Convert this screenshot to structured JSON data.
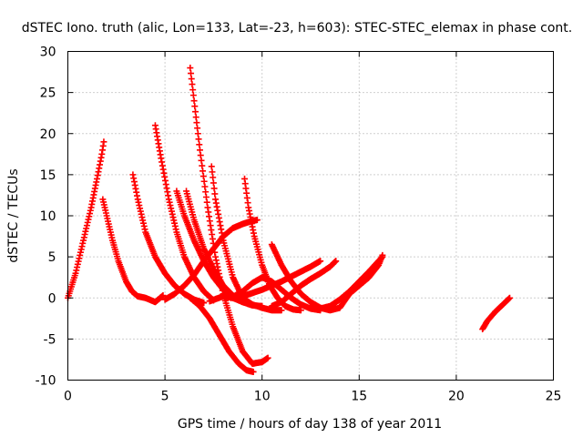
{
  "chart_data": {
    "type": "scatter",
    "title": "dSTEC Iono. truth (alic, Lon=133, Lat=-23, h=603): STEC-STEC_elemax in phase cont.",
    "xlabel": "GPS time / hours of day 138 of year 2011",
    "ylabel": "dSTEC  / TECUs",
    "xlim": [
      0,
      25
    ],
    "ylim": [
      -10,
      30
    ],
    "xticks": [
      0,
      5,
      10,
      15,
      20,
      25
    ],
    "yticks": [
      -10,
      -5,
      0,
      5,
      10,
      15,
      20,
      25,
      30
    ],
    "grid": true,
    "legend": "none",
    "marker": "plus",
    "color": "#ff0000",
    "sample_step_hours": 0.035,
    "series": [
      {
        "x": [
          0.0,
          0.4,
          0.8,
          1.2,
          1.5,
          1.75,
          1.85
        ],
        "y": [
          0.0,
          3.0,
          7.0,
          11.0,
          14.5,
          17.5,
          19.0
        ]
      },
      {
        "x": [
          1.8,
          2.0,
          2.3,
          2.6,
          3.0,
          3.3,
          3.6,
          4.0,
          4.5,
          4.9
        ],
        "y": [
          12.0,
          10.0,
          7.0,
          4.5,
          2.0,
          0.8,
          0.2,
          0.0,
          -0.5,
          0.3
        ]
      },
      {
        "x": [
          3.35,
          3.6,
          4.0,
          4.5,
          5.0,
          5.5,
          6.0,
          6.5,
          7.0
        ],
        "y": [
          15.0,
          12.0,
          8.0,
          5.0,
          3.0,
          1.5,
          0.5,
          -0.2,
          -0.6
        ]
      },
      {
        "x": [
          4.5,
          4.8,
          5.2,
          5.6,
          6.0,
          6.5,
          7.0,
          7.5
        ],
        "y": [
          21.0,
          17.0,
          12.0,
          8.0,
          5.0,
          2.5,
          0.8,
          -0.3
        ]
      },
      {
        "x": [
          5.0,
          5.5,
          6.0,
          6.5,
          7.0,
          7.5,
          8.0,
          8.5,
          9.0,
          9.4,
          9.75
        ],
        "y": [
          -0.2,
          0.5,
          1.5,
          2.8,
          4.5,
          6.0,
          7.5,
          8.5,
          9.0,
          9.3,
          9.5
        ]
      },
      {
        "x": [
          5.6,
          6.0,
          6.5,
          7.0,
          7.5,
          8.0,
          8.5,
          9.0,
          9.5
        ],
        "y": [
          13.0,
          10.0,
          7.0,
          4.5,
          2.5,
          1.0,
          0.0,
          -0.5,
          -0.8
        ]
      },
      {
        "x": [
          6.1,
          6.5,
          7.0,
          7.5,
          8.0,
          8.5,
          9.0,
          9.5,
          10.0
        ],
        "y": [
          13.0,
          9.5,
          6.0,
          3.5,
          1.5,
          0.3,
          -0.5,
          -0.9,
          -1.0
        ]
      },
      {
        "x": [
          6.3,
          6.5,
          6.8,
          7.2,
          7.6,
          8.0,
          8.5,
          9.0,
          9.5,
          10.0,
          10.3
        ],
        "y": [
          28.0,
          24.0,
          18.0,
          11.0,
          5.0,
          0.5,
          -3.5,
          -6.5,
          -8.0,
          -7.8,
          -7.3
        ]
      },
      {
        "x": [
          6.3,
          6.8,
          7.3,
          7.8,
          8.3,
          8.8,
          9.2,
          9.55
        ],
        "y": [
          0.0,
          -1.0,
          -2.5,
          -4.5,
          -6.5,
          -8.0,
          -8.8,
          -9.0
        ]
      },
      {
        "x": [
          7.4,
          7.6,
          8.0,
          8.5,
          9.0,
          9.5,
          10.0,
          10.5,
          11.0
        ],
        "y": [
          16.0,
          12.0,
          7.0,
          2.5,
          0.0,
          -0.8,
          -1.2,
          -1.5,
          -1.5
        ]
      },
      {
        "x": [
          7.3,
          8.0,
          8.5,
          9.0,
          9.5,
          10.0,
          10.5,
          11.0,
          11.5,
          12.0,
          12.5,
          13.0
        ],
        "y": [
          -0.4,
          0.2,
          0.0,
          0.2,
          0.6,
          1.0,
          1.5,
          2.0,
          2.6,
          3.2,
          3.8,
          4.5
        ]
      },
      {
        "x": [
          9.1,
          9.3,
          9.6,
          10.0,
          10.4,
          10.8,
          11.2,
          11.6,
          12.0
        ],
        "y": [
          14.5,
          11.0,
          7.5,
          4.0,
          1.5,
          0.0,
          -1.0,
          -1.4,
          -1.5
        ]
      },
      {
        "x": [
          8.4,
          9.0,
          9.5,
          10.0,
          10.5,
          11.0,
          11.5,
          12.0,
          12.5,
          13.0
        ],
        "y": [
          0.0,
          0.8,
          1.8,
          2.5,
          2.0,
          1.0,
          0.0,
          -0.8,
          -1.3,
          -1.5
        ]
      },
      {
        "x": [
          10.5,
          11.0,
          11.5,
          12.0,
          12.5,
          13.0,
          13.5,
          13.8
        ],
        "y": [
          -1.0,
          -0.5,
          0.5,
          1.5,
          2.3,
          3.0,
          3.8,
          4.5
        ]
      },
      {
        "x": [
          10.5,
          11.0,
          11.5,
          12.0,
          12.5,
          13.0,
          13.5,
          14.0,
          14.5,
          15.0,
          15.5,
          16.0,
          16.2
        ],
        "y": [
          6.5,
          4.0,
          2.0,
          0.5,
          -0.5,
          -1.2,
          -1.5,
          -1.2,
          0.5,
          1.5,
          2.5,
          4.0,
          5.2
        ]
      },
      {
        "x": [
          12.5,
          13.0,
          13.5,
          14.0,
          14.5,
          15.0,
          15.5,
          16.0,
          16.2
        ],
        "y": [
          -1.2,
          -1.3,
          -1.0,
          -0.2,
          0.8,
          2.0,
          3.2,
          4.5,
          5.0
        ]
      },
      {
        "x": [
          21.35,
          21.6,
          22.0,
          22.4,
          22.75
        ],
        "y": [
          -3.8,
          -2.8,
          -1.7,
          -0.8,
          0.0
        ]
      }
    ]
  }
}
